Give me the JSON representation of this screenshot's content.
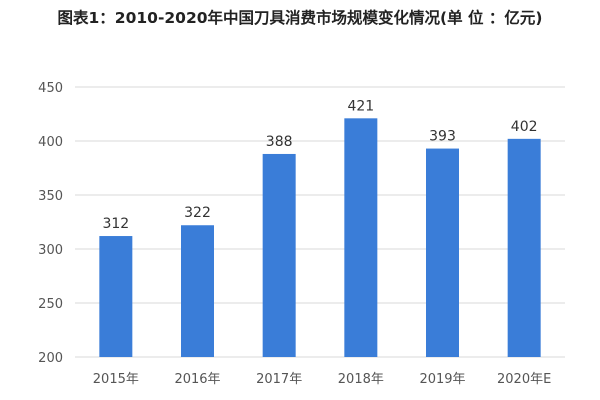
{
  "chart_data": {
    "type": "bar",
    "title": "图表1：2010-2020年中国刀具消费市场规模变化情况(单 位 ：亿元)",
    "categories": [
      "2015年",
      "2016年",
      "2017年",
      "2018年",
      "2019年",
      "2020年E"
    ],
    "values": [
      312,
      322,
      388,
      421,
      393,
      402
    ],
    "ylim": [
      200,
      450
    ],
    "yticks": [
      200,
      250,
      300,
      350,
      400,
      450
    ],
    "grid": true,
    "bar_color": "#3a7dd8",
    "xlabel": "",
    "ylabel": ""
  }
}
